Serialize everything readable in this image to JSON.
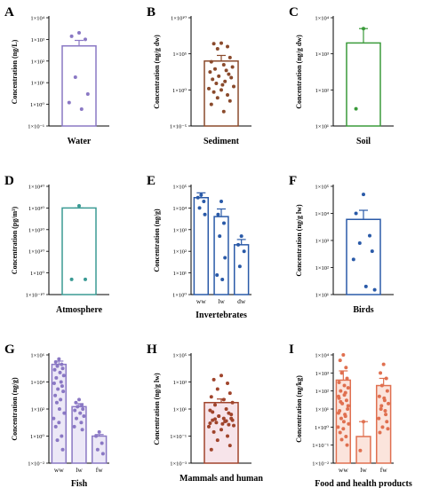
{
  "panels": [
    {
      "letter": "A",
      "xlabel": "Water",
      "ylabel": "Concentration (ng/L)",
      "ticks": [
        "1×10⁻¹",
        "1×10⁰",
        "1×10¹",
        "1×10²",
        "1×10³",
        "1×10⁴"
      ],
      "ymin_exp": -1,
      "ymax_exp": 4,
      "color": "#8a78c4",
      "fill": "#ffffff",
      "groups": [
        {
          "label": "",
          "mean": 500,
          "err_high": 900,
          "points": [
            2000,
            1400,
            1000,
            18,
            3,
            1.2,
            0.6
          ]
        }
      ]
    },
    {
      "letter": "B",
      "xlabel": "Sediment",
      "ylabel": "Concentration (ng/g dw)",
      "ticks": [
        "1×10⁻⁵",
        "1×10⁰",
        "1×10⁵",
        "1×10¹⁰"
      ],
      "ymin_exp": -5,
      "ymax_exp": 10,
      "color": "#8a4a2c",
      "fill": "#ffffff",
      "groups": [
        {
          "label": "",
          "mean": 10000,
          "err_high": 60000,
          "points": [
            3000000,
            2500000,
            1000000,
            500000,
            30000,
            8000,
            3000,
            1500,
            800,
            500,
            300,
            150,
            80,
            50,
            30,
            15,
            8,
            5,
            3,
            1.5,
            1,
            0.5,
            0.2,
            0.08,
            0.03,
            0.01,
            0.001
          ]
        }
      ]
    },
    {
      "letter": "C",
      "xlabel": "Soil",
      "ylabel": "Concentration (ng/g dw)",
      "ticks": [
        "1×10¹",
        "1×10²",
        "1×10³",
        "1×10⁴"
      ],
      "ymin_exp": 1,
      "ymax_exp": 4,
      "color": "#3a9a3a",
      "fill": "#ffffff",
      "groups": [
        {
          "label": "",
          "mean": 2000,
          "err_high": 5000,
          "points": [
            5000,
            30
          ]
        }
      ]
    },
    {
      "letter": "D",
      "xlabel": "Atmosphere",
      "ylabel": "Concentration (pg/m³)",
      "ticks": [
        "1×10⁻¹⁰",
        "1×10⁰",
        "1×10¹⁰",
        "1×10²⁰",
        "1×10³⁰",
        "1×10⁴⁰"
      ],
      "ymin_exp": -10,
      "ymax_exp": 40,
      "color": "#3a9a94",
      "fill": "#ffffff",
      "groups": [
        {
          "label": "",
          "mean": 1e+30,
          "err_high": 1e+30,
          "points": [
            1e+31,
            0.001,
            0.001
          ]
        }
      ]
    },
    {
      "letter": "E",
      "xlabel": "Invertebrates",
      "ylabel": "Concentration (ng/g)",
      "ticks": [
        "1×10⁰",
        "1×10¹",
        "1×10²",
        "1×10³",
        "1×10⁴",
        "1×10⁵"
      ],
      "ymin_exp": 0,
      "ymax_exp": 5,
      "color": "#2a5aa8",
      "fill": "#ffffff",
      "groups": [
        {
          "label": "ww",
          "mean": 30000,
          "err_high": 50000,
          "points": [
            40000,
            30000,
            20000,
            10000,
            5000
          ]
        },
        {
          "label": "lw",
          "mean": 4000,
          "err_high": 9000,
          "points": [
            20000,
            5000,
            2000,
            500,
            50,
            8,
            5
          ]
        },
        {
          "label": "dw",
          "mean": 200,
          "err_high": 350,
          "points": [
            500,
            200,
            100,
            20
          ]
        }
      ]
    },
    {
      "letter": "F",
      "xlabel": "Birds",
      "ylabel": "Concentration (ng/g lw)",
      "ticks": [
        "1×10¹",
        "1×10²",
        "1×10³",
        "1×10⁴",
        "1×10⁵"
      ],
      "ymin_exp": 1,
      "ymax_exp": 5,
      "color": "#2a5aa8",
      "fill": "#ffffff",
      "groups": [
        {
          "label": "",
          "mean": 6000,
          "err_high": 13000,
          "points": [
            50000,
            10000,
            1500,
            800,
            400,
            200,
            20,
            15
          ]
        }
      ]
    },
    {
      "letter": "G",
      "xlabel": "Fish",
      "ylabel": "Concentration (ng/g)",
      "ticks": [
        "1×10⁻²",
        "1×10⁰",
        "1×10²",
        "1×10⁴",
        "1×10⁶"
      ],
      "ymin_exp": -2,
      "ymax_exp": 6,
      "color": "#8a78c4",
      "fill": "#ece8f7",
      "groups": [
        {
          "label": "ww",
          "mean": 200000,
          "err_high": 350000,
          "points": [
            500000,
            300000,
            200000,
            150000,
            100000,
            80000,
            50000,
            30000,
            20000,
            10000,
            8000,
            5000,
            3000,
            2000,
            1000,
            500,
            300,
            100,
            50,
            20,
            10,
            5,
            1,
            0.5,
            0.1
          ]
        },
        {
          "label": "lw",
          "mean": 150,
          "err_high": 250,
          "points": [
            500,
            300,
            200,
            150,
            100,
            80,
            50,
            30,
            20,
            10,
            5,
            3
          ]
        },
        {
          "label": "fw",
          "mean": 1,
          "err_high": 1.3,
          "points": [
            2,
            1,
            0.3,
            0.1,
            0.05
          ]
        }
      ]
    },
    {
      "letter": "H",
      "xlabel": "Mammals and human",
      "ylabel": "Concentration (ng/g lw)",
      "ticks": [
        "1×10⁻³",
        "1×10⁻¹",
        "1×10¹",
        "1×10³",
        "1×10⁵"
      ],
      "ymin_exp": -3,
      "ymax_exp": 5,
      "color": "#a0442c",
      "fill": "#f7e4ea",
      "groups": [
        {
          "label": "",
          "mean": 30,
          "err_high": 55,
          "points": [
            3000,
            1500,
            800,
            300,
            150,
            80,
            50,
            30,
            20,
            10,
            8,
            5,
            3,
            2,
            1.5,
            1.2,
            1,
            0.8,
            0.6,
            0.5,
            0.3,
            0.2,
            0.1,
            0.05,
            0.02,
            0.01,
            2,
            1.5,
            1.8,
            1.3,
            0.9,
            0.7,
            3,
            4,
            6
          ]
        }
      ]
    },
    {
      "letter": "I",
      "xlabel": "Food and health products",
      "ylabel": "Concentration (ng/kg)",
      "ticks": [
        "1×10⁻²",
        "1×10⁻¹",
        "1×10⁰",
        "1×10¹",
        "1×10²",
        "1×10³",
        "1×10⁴"
      ],
      "ymin_exp": -2,
      "ymax_exp": 4,
      "color": "#e07050",
      "fill": "#fbe4dc",
      "groups": [
        {
          "label": "ww",
          "mean": 400,
          "err_high": 1300,
          "points": [
            10000,
            5000,
            2000,
            1000,
            500,
            300,
            200,
            150,
            100,
            80,
            50,
            30,
            20,
            10,
            8,
            5,
            3,
            2,
            1.5,
            1,
            0.8,
            0.5,
            0.3,
            0.2,
            0.1,
            40,
            60,
            15,
            25,
            4,
            6
          ]
        },
        {
          "label": "lw",
          "mean": 0.3,
          "err_high": 2,
          "points": [
            2,
            0.05
          ]
        },
        {
          "label": "fw",
          "mean": 200,
          "err_high": 500,
          "points": [
            3000,
            1000,
            500,
            200,
            100,
            50,
            30,
            20,
            10,
            5,
            3,
            2,
            1,
            0.8,
            0.5,
            8,
            15,
            40
          ]
        }
      ]
    }
  ],
  "chart_data": [
    {
      "type": "bar",
      "title": "A",
      "xlabel": "Water",
      "ylabel": "Concentration (ng/L)",
      "log_scale": true,
      "ylim": [
        0.1,
        10000
      ],
      "categories": [
        ""
      ],
      "values": [
        500
      ]
    },
    {
      "type": "bar",
      "title": "B",
      "xlabel": "Sediment",
      "ylabel": "Concentration (ng/g dw)",
      "log_scale": true,
      "ylim": [
        1e-05,
        10000000000.0
      ],
      "categories": [
        ""
      ],
      "values": [
        10000
      ]
    },
    {
      "type": "bar",
      "title": "C",
      "xlabel": "Soil",
      "ylabel": "Concentration (ng/g dw)",
      "log_scale": true,
      "ylim": [
        10,
        10000
      ],
      "categories": [
        ""
      ],
      "values": [
        2000
      ]
    },
    {
      "type": "bar",
      "title": "D",
      "xlabel": "Atmosphere",
      "ylabel": "Concentration (pg/m³)",
      "log_scale": true,
      "ylim": [
        1e-10,
        1e+40
      ],
      "categories": [
        ""
      ],
      "values": [
        1e+30
      ]
    },
    {
      "type": "bar",
      "title": "E",
      "xlabel": "Invertebrates",
      "ylabel": "Concentration (ng/g)",
      "log_scale": true,
      "ylim": [
        1,
        100000
      ],
      "categories": [
        "ww",
        "lw",
        "dw"
      ],
      "values": [
        30000,
        4000,
        200
      ]
    },
    {
      "type": "bar",
      "title": "F",
      "xlabel": "Birds",
      "ylabel": "Concentration (ng/g lw)",
      "log_scale": true,
      "ylim": [
        10,
        100000
      ],
      "categories": [
        ""
      ],
      "values": [
        6000
      ]
    },
    {
      "type": "bar",
      "title": "G",
      "xlabel": "Fish",
      "ylabel": "Concentration (ng/g)",
      "log_scale": true,
      "ylim": [
        0.01,
        1000000
      ],
      "categories": [
        "ww",
        "lw",
        "fw"
      ],
      "values": [
        200000,
        150,
        1
      ]
    },
    {
      "type": "bar",
      "title": "H",
      "xlabel": "Mammals and human",
      "ylabel": "Concentration (ng/g lw)",
      "log_scale": true,
      "ylim": [
        0.001,
        100000
      ],
      "categories": [
        ""
      ],
      "values": [
        30
      ]
    },
    {
      "type": "bar",
      "title": "I",
      "xlabel": "Food and health products",
      "ylabel": "Concentration (ng/kg)",
      "log_scale": true,
      "ylim": [
        0.01,
        10000
      ],
      "categories": [
        "ww",
        "lw",
        "fw"
      ],
      "values": [
        400,
        0.3,
        200
      ]
    }
  ]
}
